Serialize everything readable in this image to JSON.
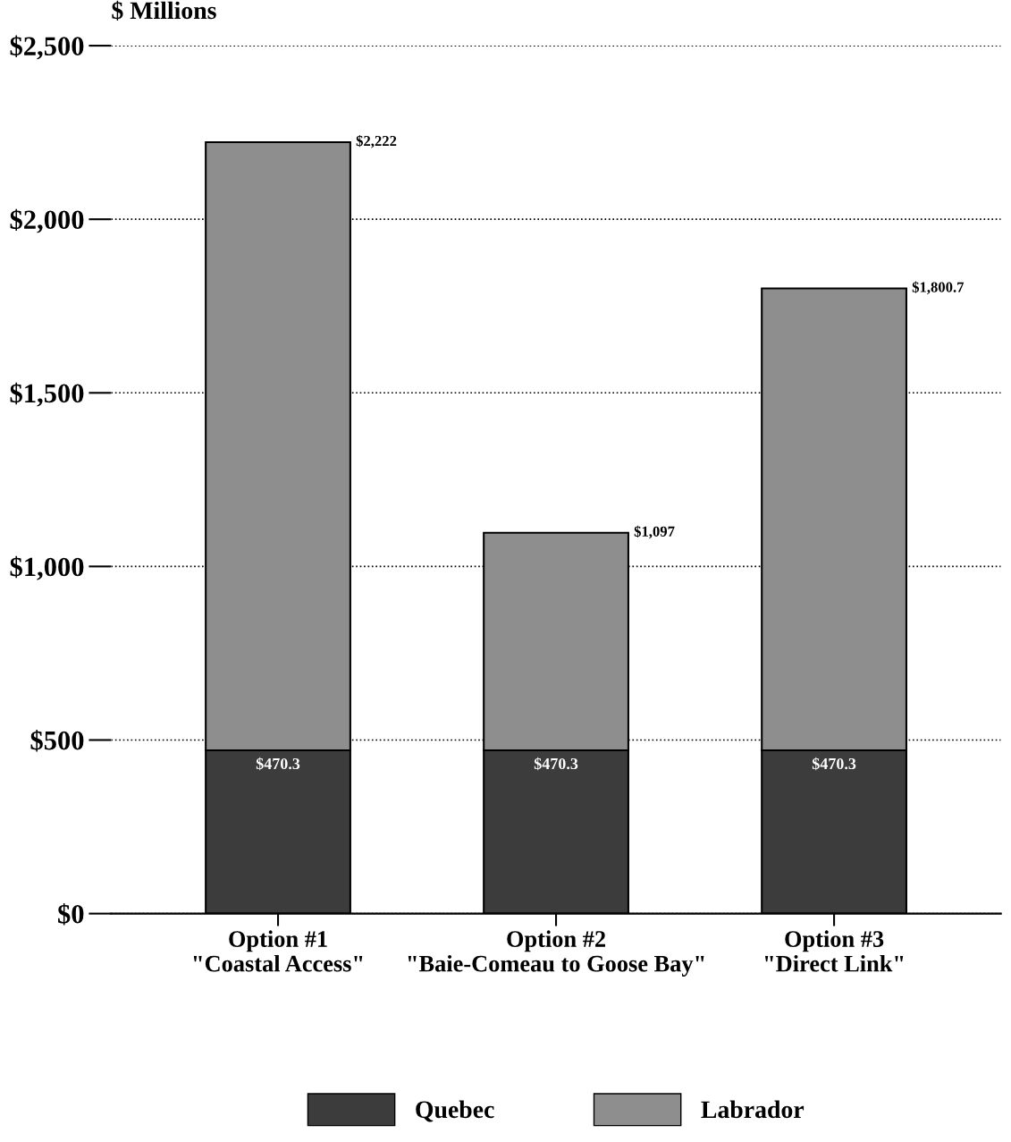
{
  "chart_data": {
    "type": "bar",
    "stacked": true,
    "ylabel": "$ Millions",
    "categories": [
      "Option #1\n\"Coastal Access\"",
      "Option #2\n\"Baie-Comeau to Goose Bay\"",
      "Option #3\n\"Direct Link\""
    ],
    "series": [
      {
        "name": "Quebec",
        "color": "#3c3c3c",
        "values": [
          470.3,
          470.3,
          470.3
        ],
        "value_labels": [
          "$470.3",
          "$470.3",
          "$470.3"
        ]
      },
      {
        "name": "Labrador",
        "color": "#8e8e8e",
        "values": [
          1751.7,
          626.7,
          1330.4
        ]
      }
    ],
    "totals": [
      "$2,222",
      "$1,097",
      "$1,800.7"
    ],
    "ylim": [
      0,
      2500
    ],
    "yticks": [
      {
        "value": 0,
        "label": "$0"
      },
      {
        "value": 500,
        "label": "$500"
      },
      {
        "value": 1000,
        "label": "$1,000"
      },
      {
        "value": 1500,
        "label": "$1,500"
      },
      {
        "value": 2000,
        "label": "$2,000"
      },
      {
        "value": 2500,
        "label": "$2,500"
      }
    ],
    "grid": "y",
    "legend": "bottom"
  }
}
